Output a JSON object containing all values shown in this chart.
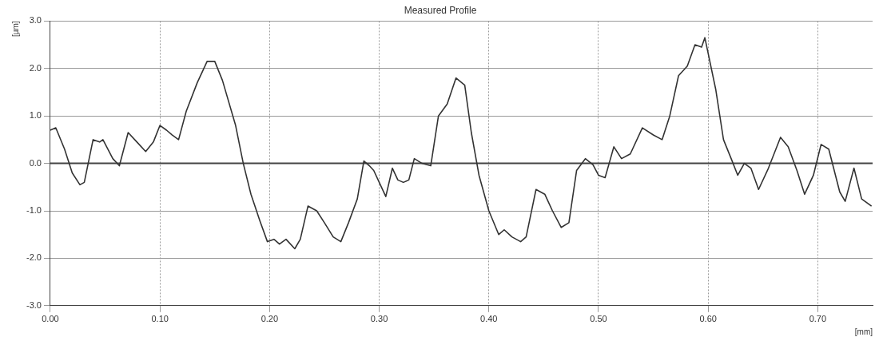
{
  "chart_data": {
    "type": "line",
    "title": "Measured Profile",
    "xlabel": "[mm]",
    "ylabel": "[µm]",
    "x": [
      0.0,
      0.005,
      0.013,
      0.02,
      0.027,
      0.031,
      0.039,
      0.045,
      0.048,
      0.057,
      0.063,
      0.071,
      0.079,
      0.087,
      0.094,
      0.1,
      0.106,
      0.111,
      0.117,
      0.124,
      0.134,
      0.143,
      0.15,
      0.157,
      0.169,
      0.176,
      0.183,
      0.191,
      0.198,
      0.204,
      0.209,
      0.215,
      0.223,
      0.228,
      0.235,
      0.243,
      0.25,
      0.258,
      0.265,
      0.272,
      0.28,
      0.286,
      0.291,
      0.295,
      0.3,
      0.306,
      0.312,
      0.317,
      0.322,
      0.327,
      0.332,
      0.339,
      0.347,
      0.354,
      0.362,
      0.37,
      0.378,
      0.384,
      0.391,
      0.4,
      0.409,
      0.414,
      0.421,
      0.429,
      0.434,
      0.443,
      0.451,
      0.458,
      0.466,
      0.473,
      0.48,
      0.488,
      0.495,
      0.5,
      0.506,
      0.514,
      0.521,
      0.529,
      0.54,
      0.55,
      0.558,
      0.565,
      0.573,
      0.581,
      0.588,
      0.594,
      0.597,
      0.607,
      0.614,
      0.621,
      0.627,
      0.633,
      0.639,
      0.646,
      0.655,
      0.666,
      0.673,
      0.681,
      0.688,
      0.696,
      0.703,
      0.71,
      0.72,
      0.725,
      0.733,
      0.74,
      0.749
    ],
    "series": [
      {
        "color": "#333333",
        "values": [
          0.7,
          0.75,
          0.3,
          -0.2,
          -0.45,
          -0.4,
          0.5,
          0.45,
          0.5,
          0.1,
          -0.05,
          0.65,
          0.45,
          0.25,
          0.45,
          0.8,
          0.7,
          0.6,
          0.5,
          1.1,
          1.7,
          2.15,
          2.15,
          1.75,
          0.8,
          0.0,
          -0.65,
          -1.2,
          -1.65,
          -1.6,
          -1.7,
          -1.6,
          -1.8,
          -1.6,
          -0.9,
          -1.0,
          -1.25,
          -1.55,
          -1.65,
          -1.25,
          -0.75,
          0.05,
          -0.05,
          -0.15,
          -0.4,
          -0.7,
          -0.1,
          -0.35,
          -0.4,
          -0.35,
          0.1,
          0.0,
          -0.05,
          1.0,
          1.25,
          1.8,
          1.65,
          0.65,
          -0.25,
          -1.0,
          -1.5,
          -1.4,
          -1.55,
          -1.65,
          -1.55,
          -0.55,
          -0.65,
          -1.0,
          -1.35,
          -1.25,
          -0.15,
          0.1,
          -0.03,
          -0.25,
          -0.3,
          0.35,
          0.1,
          0.2,
          0.75,
          0.6,
          0.5,
          1.0,
          1.85,
          2.05,
          2.5,
          2.45,
          2.65,
          1.55,
          0.5,
          0.1,
          -0.25,
          0.0,
          -0.1,
          -0.55,
          -0.1,
          0.55,
          0.35,
          -0.15,
          -0.65,
          -0.25,
          0.4,
          0.3,
          -0.6,
          -0.8,
          -0.1,
          -0.75,
          -0.9
        ]
      }
    ],
    "xlim": [
      0,
      0.75
    ],
    "xticks": [
      {
        "value": 0,
        "label": "0.00"
      },
      {
        "value": 0.1,
        "label": "0.10"
      },
      {
        "value": 0.2,
        "label": "0.20"
      },
      {
        "value": 0.3,
        "label": "0.30"
      },
      {
        "value": 0.4,
        "label": "0.40"
      },
      {
        "value": 0.5,
        "label": "0.50"
      },
      {
        "value": 0.6,
        "label": "0.60"
      },
      {
        "value": 0.7,
        "label": "0.70"
      }
    ],
    "ylim": [
      -3,
      3
    ],
    "yticks": [
      {
        "value": -3,
        "label": "-3.0"
      },
      {
        "value": -2,
        "label": "-2.0"
      },
      {
        "value": -1,
        "label": "-1.0"
      },
      {
        "value": 0,
        "label": "0.0"
      },
      {
        "value": 1,
        "label": "1.0"
      },
      {
        "value": 2,
        "label": "2.0"
      },
      {
        "value": 3,
        "label": "3.0"
      }
    ],
    "ref_lines": [
      {
        "axis": "y",
        "value": 0,
        "color": "#444444"
      }
    ],
    "grid": true,
    "legend": false,
    "marker": "none",
    "line_style": "solid"
  }
}
